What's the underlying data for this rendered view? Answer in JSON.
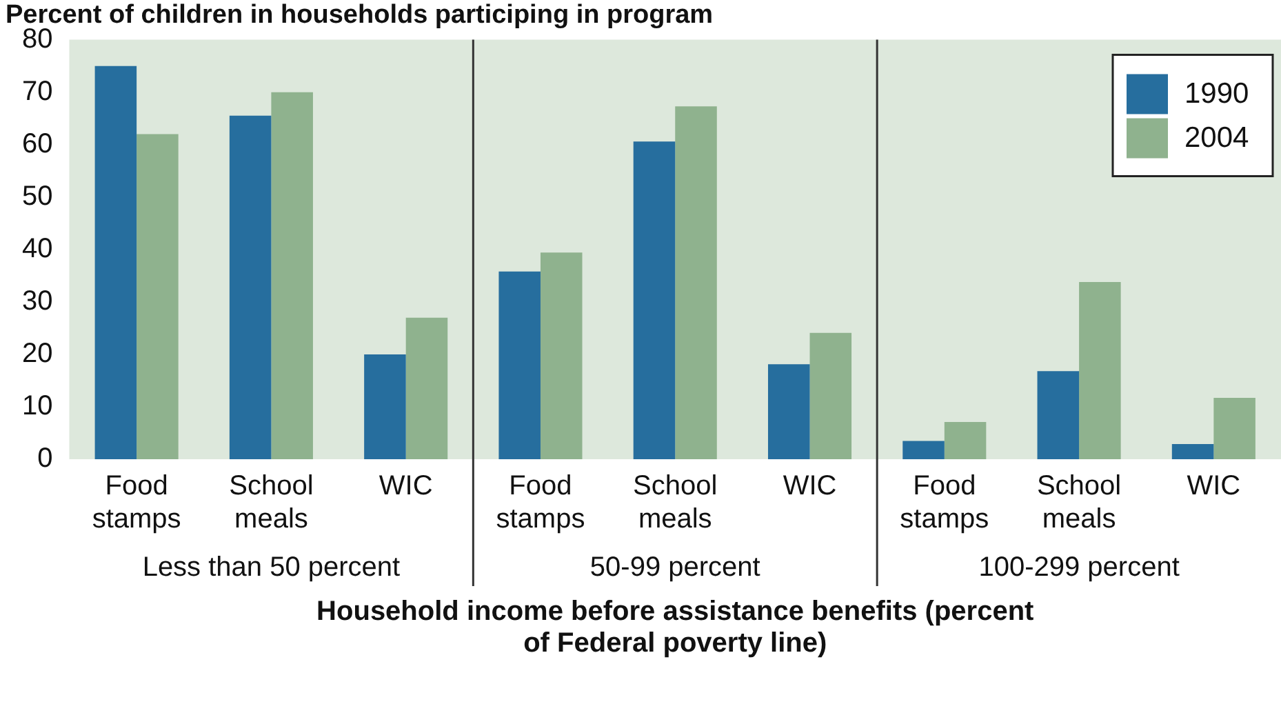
{
  "chart_data": {
    "type": "bar",
    "title": "Percent of children in households participing in program",
    "xlabel": "Household income before assistance benefits (percent of Federal poverty line)",
    "categories": [
      "Food stamps",
      "School meals",
      "WIC",
      "Food stamps",
      "School meals",
      "WIC",
      "Food stamps",
      "School meals",
      "WIC"
    ],
    "annotations": [
      "Less than 50 percent",
      "50-99 percent",
      "100-299 percent"
    ],
    "series": [
      {
        "name": "1990",
        "color": "#266e9e",
        "values": [
          75,
          65.5,
          20,
          35.8,
          60.6,
          18.1,
          3.5,
          16.8,
          2.9
        ]
      },
      {
        "name": "2004",
        "color": "#8fb28e",
        "values": [
          62,
          70,
          27,
          39.4,
          67.3,
          24.1,
          7.1,
          33.8,
          11.7
        ]
      }
    ],
    "ylim": [
      0,
      80
    ],
    "yticks": [
      0,
      10,
      20,
      30,
      40,
      50,
      60,
      70,
      80
    ],
    "grid": false,
    "legend": "top right"
  }
}
